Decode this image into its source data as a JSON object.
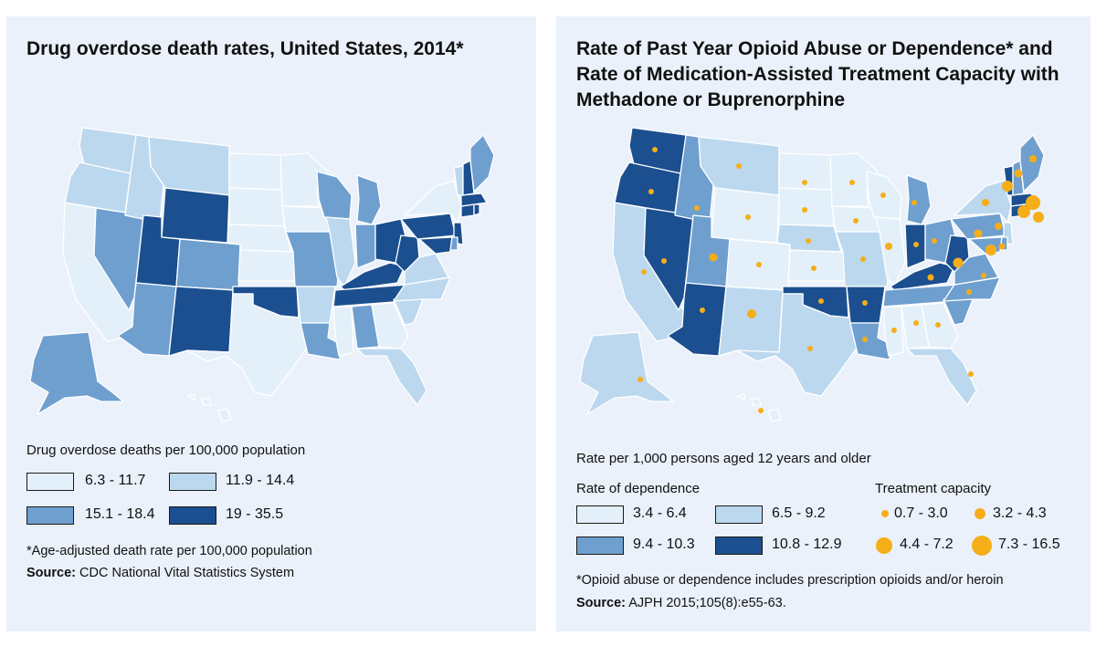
{
  "colors": {
    "panel_bg": "#eaf1fa",
    "level1": "#e3f0f9",
    "level2": "#bcd8ef",
    "level3": "#6f9fcf",
    "level4": "#1b4f8f",
    "dot": "#f5ae17"
  },
  "left_map": {
    "title": "Drug overdose death rates, United States, 2014*",
    "legend_heading": "Drug overdose deaths per 100,000 population",
    "legend_items": [
      {
        "label": "6.3 - 11.7"
      },
      {
        "label": "11.9 - 14.4"
      },
      {
        "label": "15.1 - 18.4"
      },
      {
        "label": "19 - 35.5"
      }
    ],
    "footnote": "*Age-adjusted death rate per 100,000 population",
    "source_label": "Source:",
    "source_text": "CDC National Vital Statistics System"
  },
  "right_map": {
    "title": "Rate of Past Year Opioid Abuse or Dependence* and Rate of Medication-Assisted Treatment Capacity with Methadone or Buprenorphine",
    "legend_heading": "Rate per 1,000 persons aged 12 years and older",
    "dependence_heading": "Rate of dependence",
    "dependence_items": [
      {
        "label": "3.4 - 6.4"
      },
      {
        "label": "6.5 - 9.2"
      },
      {
        "label": "9.4 - 10.3"
      },
      {
        "label": "10.8 - 12.9"
      }
    ],
    "capacity_heading": "Treatment capacity",
    "capacity_items": [
      {
        "label": "0.7 - 3.0"
      },
      {
        "label": "3.2 - 4.3"
      },
      {
        "label": "4.4 - 7.2"
      },
      {
        "label": "7.3 - 16.5"
      }
    ],
    "footnote": "*Opioid abuse or dependence includes prescription opioids and/or heroin",
    "source_label": "Source:",
    "source_text": "AJPH 2015;105(8):e55-63."
  }
}
